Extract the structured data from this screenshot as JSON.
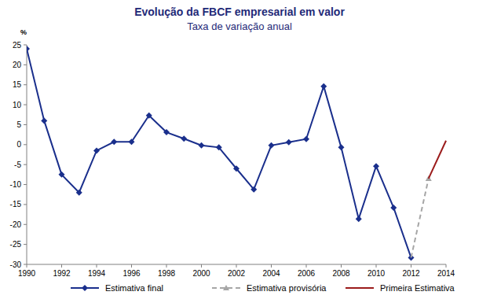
{
  "chart_data": {
    "type": "line",
    "title": "Evolução da FBCF empresarial em valor",
    "subtitle": "Taxa de variação anual",
    "y_label": "%",
    "x": [
      1990,
      1991,
      1992,
      1993,
      1994,
      1995,
      1996,
      1997,
      1998,
      1999,
      2000,
      2001,
      2002,
      2003,
      2004,
      2005,
      2006,
      2007,
      2008,
      2009,
      2010,
      2011,
      2012,
      2013,
      2014
    ],
    "series": [
      {
        "name": "Estimativa final",
        "color": "#1a2f8c",
        "marker": "diamond",
        "line_style": "solid",
        "values": [
          24,
          6,
          -7.5,
          -12,
          -1.5,
          0.7,
          0.7,
          7.3,
          3.1,
          1.5,
          -0.2,
          -0.7,
          -6,
          -11.2,
          -0.2,
          0.6,
          1.4,
          14.6,
          -0.7,
          -18.6,
          -5.4,
          -15.8,
          -28.3,
          null,
          null
        ]
      },
      {
        "name": "Estimativa provisória",
        "color": "#a6a6a6",
        "marker": "triangle",
        "line_style": "dashed",
        "values": [
          null,
          null,
          null,
          null,
          null,
          null,
          null,
          null,
          null,
          null,
          null,
          null,
          null,
          null,
          null,
          null,
          null,
          null,
          null,
          null,
          null,
          null,
          -28.3,
          -8.5,
          null
        ]
      },
      {
        "name": "Primeira Estimativa",
        "color": "#9b1b1b",
        "marker": "none",
        "line_style": "solid",
        "values": [
          null,
          null,
          null,
          null,
          null,
          null,
          null,
          null,
          null,
          null,
          null,
          null,
          null,
          null,
          null,
          null,
          null,
          null,
          null,
          null,
          null,
          null,
          null,
          -8.5,
          1
        ]
      }
    ],
    "xlim": [
      1990,
      2014
    ],
    "xticks": [
      1990,
      1992,
      1994,
      1996,
      1998,
      2000,
      2002,
      2004,
      2006,
      2008,
      2010,
      2012,
      2014
    ],
    "ylim": [
      -30,
      25
    ],
    "yticks": [
      -30,
      -25,
      -20,
      -15,
      -10,
      -5,
      0,
      5,
      10,
      15,
      20,
      25
    ],
    "grid": false,
    "legend": "bottom"
  }
}
